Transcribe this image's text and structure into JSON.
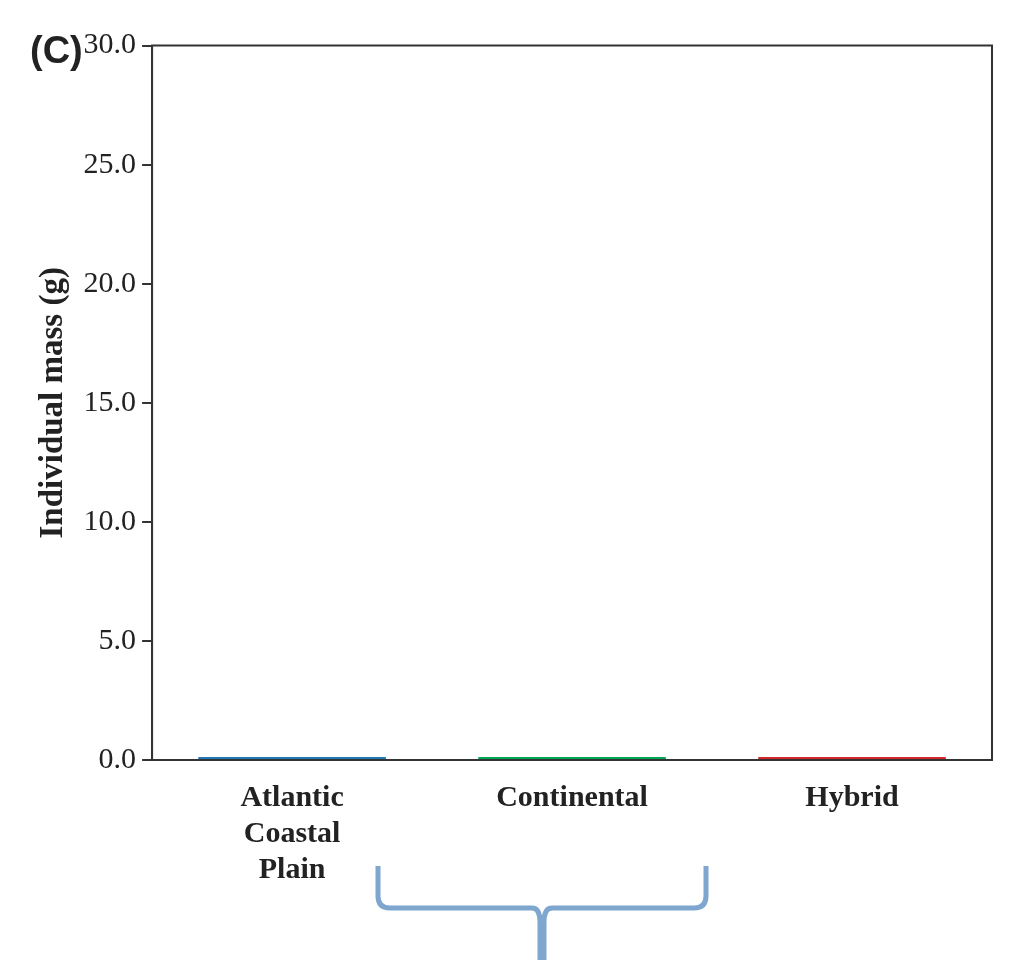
{
  "chart_data": {
    "type": "bar",
    "title": "(C)",
    "ylabel": "Individual mass (g)",
    "categories": [
      "Atlantic Coastal Plain",
      "Continental",
      "Hybrid"
    ],
    "values": [
      0,
      0,
      0
    ],
    "colors": [
      "#1f77b4",
      "#00a651",
      "#d62728"
    ],
    "ylim": [
      0,
      30
    ],
    "yticks": [
      {
        "value": 0,
        "label": "0.0"
      },
      {
        "value": 5,
        "label": "5.0"
      },
      {
        "value": 10,
        "label": "10.0"
      },
      {
        "value": 15,
        "label": "15.0"
      },
      {
        "value": 20,
        "label": "20.0"
      },
      {
        "value": 25,
        "label": "25.0"
      },
      {
        "value": 30,
        "label": "30.0"
      }
    ]
  }
}
